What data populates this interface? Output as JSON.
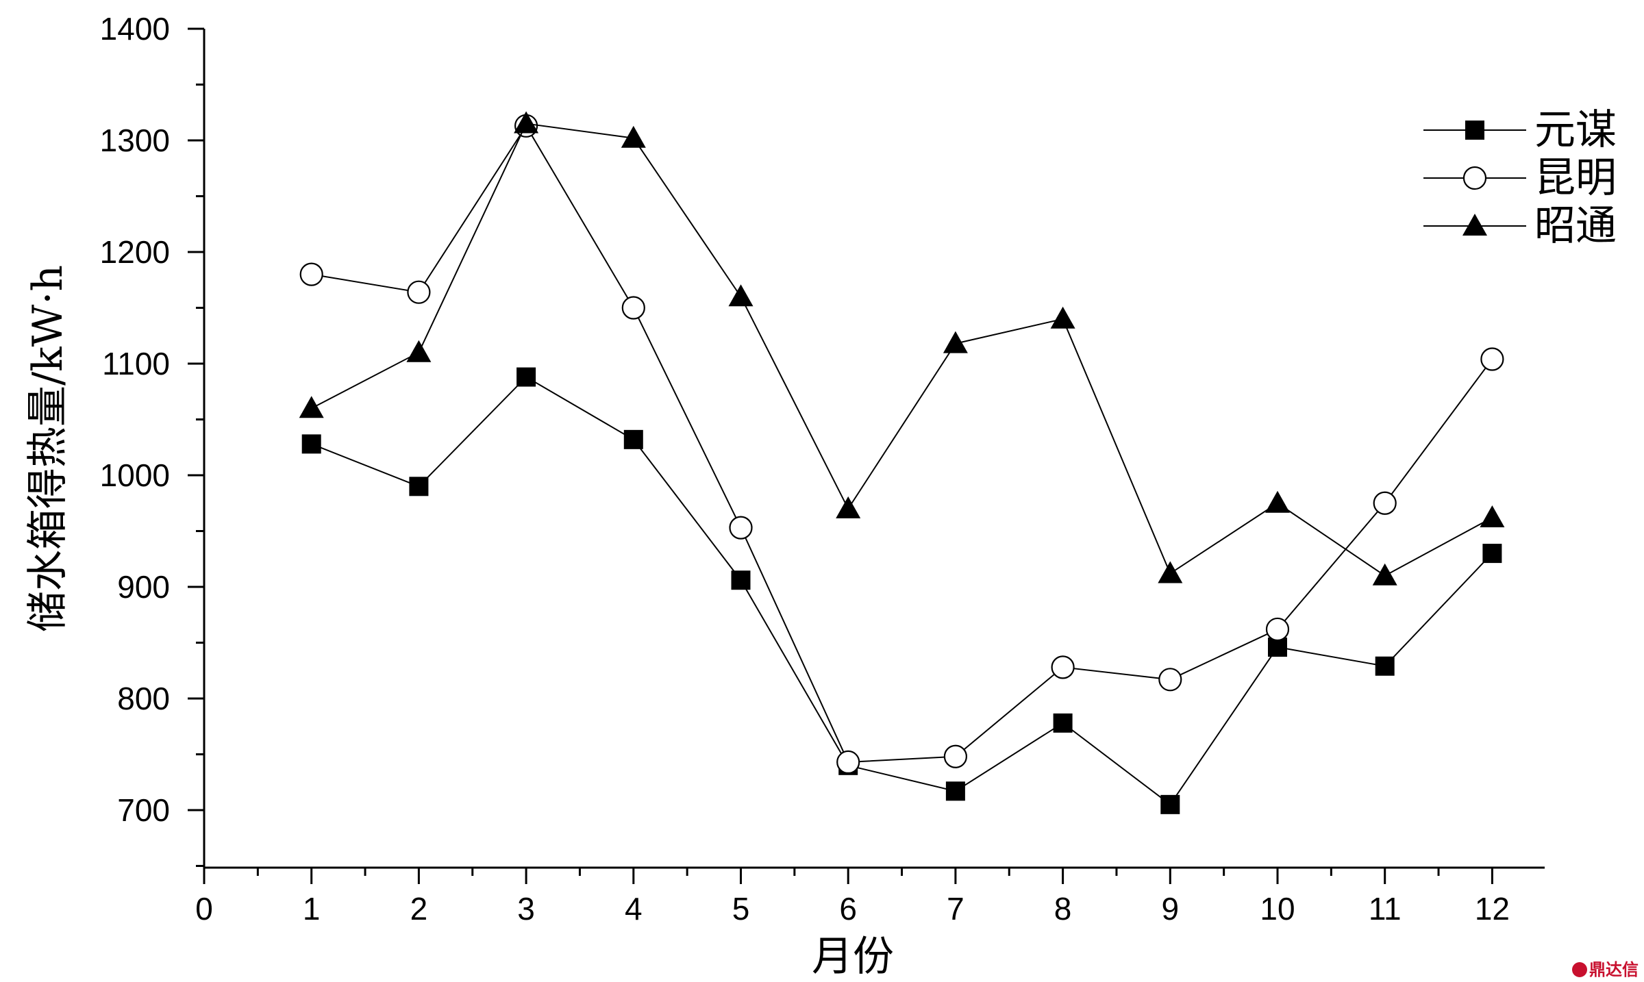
{
  "chart_data": {
    "type": "line",
    "title": "",
    "xlabel": "月份",
    "ylabel": "储水箱得热量/kW·h",
    "xlim": [
      0,
      12.5
    ],
    "ylim": [
      650,
      1400
    ],
    "x_ticks": [
      0,
      1,
      2,
      3,
      4,
      5,
      6,
      7,
      8,
      9,
      10,
      11,
      12
    ],
    "y_ticks": [
      700,
      800,
      900,
      1000,
      1100,
      1200,
      1300,
      1400
    ],
    "x": [
      1,
      2,
      3,
      4,
      5,
      6,
      7,
      8,
      9,
      10,
      11,
      12
    ],
    "series": [
      {
        "name": "元谋",
        "marker": "square-filled",
        "values": [
          1028,
          990,
          1088,
          1032,
          906,
          740,
          717,
          778,
          705,
          846,
          829,
          930
        ]
      },
      {
        "name": "昆明",
        "marker": "circle-open",
        "values": [
          1180,
          1164,
          1313,
          1150,
          953,
          743,
          748,
          828,
          817,
          862,
          975,
          1104
        ]
      },
      {
        "name": "昭通",
        "marker": "triangle-filled",
        "values": [
          1060,
          1110,
          1315,
          1302,
          1160,
          970,
          1118,
          1140,
          912,
          975,
          910,
          962
        ]
      }
    ],
    "legend_position": "top-right",
    "grid": false
  },
  "watermark_text": "鼎达信"
}
